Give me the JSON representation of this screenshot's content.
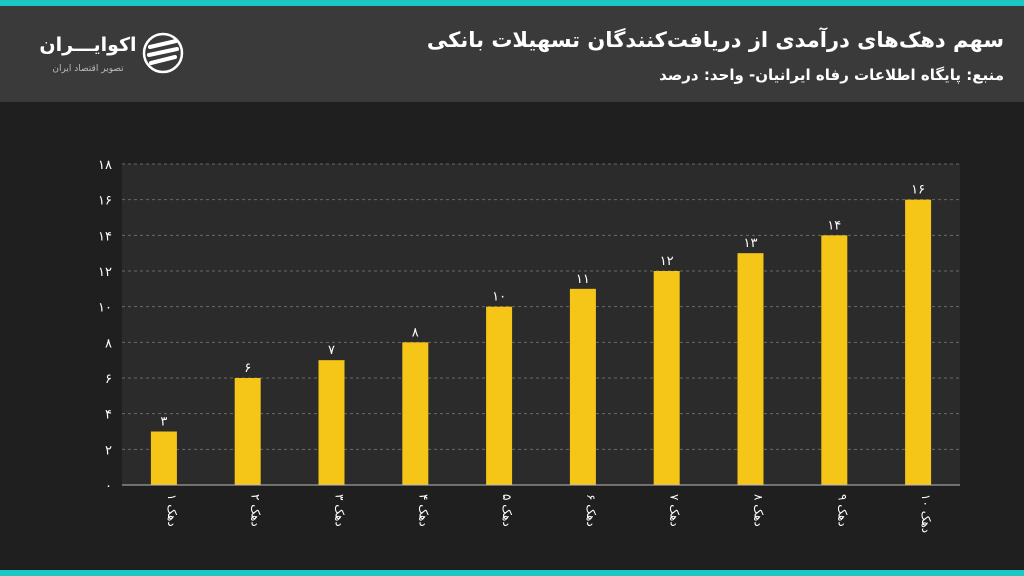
{
  "header": {
    "title": "سهم دهک‌های درآمدی از دریافت‌کنندگان تسهیلات بانکی",
    "subtitle": "منبع: پایگاه اطلاعات رفاه ایرانیان- واحد: درصد"
  },
  "brand": {
    "name": "اکوایـــران",
    "tagline": "تصویر اقتصاد ایران"
  },
  "colors": {
    "accent": "#1cc6c3",
    "bar": "#f5c518",
    "background": "#1f1f1f",
    "header": "#3a3a3a"
  },
  "chart_data": {
    "type": "bar",
    "title": "",
    "xlabel": "",
    "ylabel": "",
    "categories": [
      "دهک ۱",
      "دهک ۲",
      "دهک ۳",
      "دهک ۴",
      "دهک ۵",
      "دهک ۶",
      "دهک ۷",
      "دهک ۸",
      "دهک ۹",
      "دهک ۱۰"
    ],
    "values": [
      3,
      6,
      7,
      8,
      10,
      11,
      12,
      13,
      14,
      16
    ],
    "value_labels": [
      "۳",
      "۶",
      "۷",
      "۸",
      "۱۰",
      "۱۱",
      "۱۲",
      "۱۳",
      "۱۴",
      "۱۶"
    ],
    "yticks": [
      0,
      2,
      4,
      6,
      8,
      10,
      12,
      14,
      16,
      18
    ],
    "ytick_labels": [
      "۰",
      "۲",
      "۴",
      "۶",
      "۸",
      "۱۰",
      "۱۲",
      "۱۴",
      "۱۶",
      "۱۸"
    ],
    "ylim": [
      0,
      18
    ],
    "grid": true,
    "category_label_orientation": "vertical"
  }
}
